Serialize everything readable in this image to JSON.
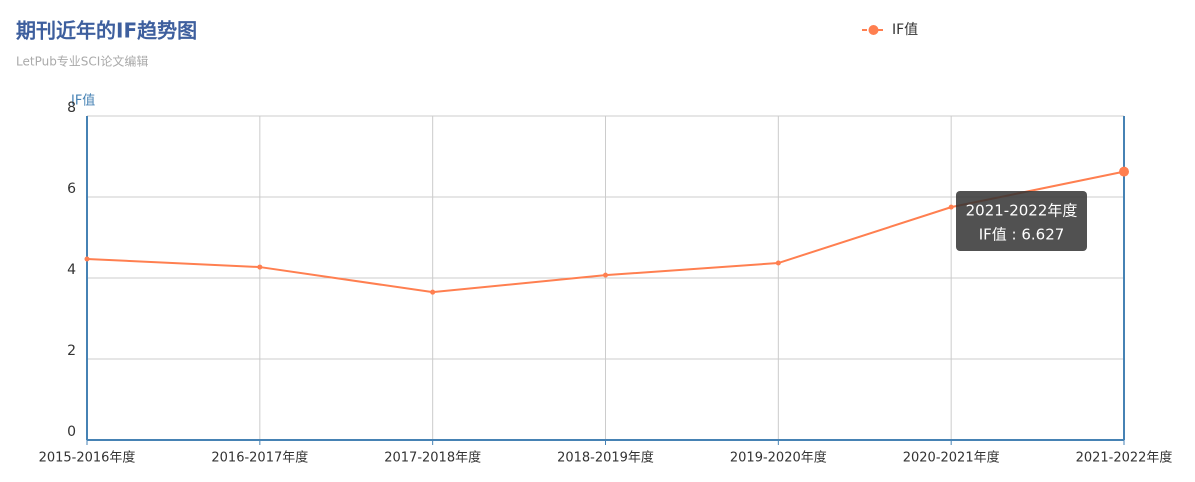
{
  "chart_data": {
    "type": "line",
    "title": "期刊近年的IF趋势图",
    "subtitle": "LetPub专业SCI论文编辑",
    "y_label": "IF值",
    "categories": [
      "2015-2016年度",
      "2016-2017年度",
      "2017-2018年度",
      "2018-2019年度",
      "2019-2020年度",
      "2020-2021年度",
      "2021-2022年度"
    ],
    "series": [
      {
        "name": "IF值",
        "color": "#ff7f50",
        "values": [
          4.47,
          4.27,
          3.65,
          4.07,
          4.37,
          5.75,
          6.627
        ]
      }
    ],
    "ylim": [
      0,
      8
    ],
    "yticks": [
      0,
      2,
      4,
      6,
      8
    ],
    "grid": true,
    "tooltip": {
      "category": "2021-2022年度",
      "label": "IF值 : 6.627"
    }
  }
}
